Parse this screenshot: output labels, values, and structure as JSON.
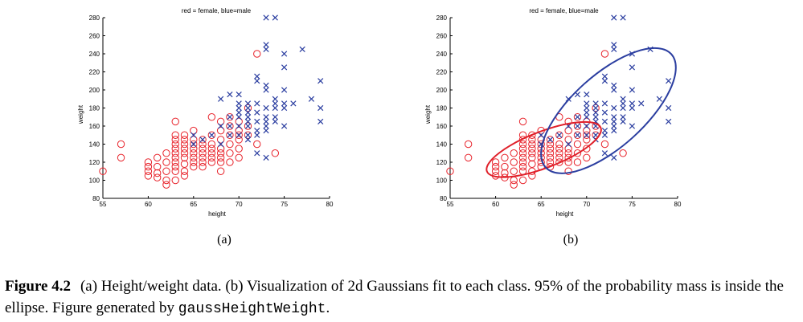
{
  "caption": {
    "figure_number": "Figure 4.2",
    "text_before_code": "(a) Height/weight data. (b) Visualization of 2d Gaussians fit to each class. 95% of the probability mass is inside the ellipse. Figure generated by ",
    "code": "gaussHeightWeight",
    "text_after_code": "."
  },
  "colors": {
    "female": "#e8232b",
    "male": "#2b3ea0"
  },
  "chart_data": [
    {
      "type": "scatter",
      "panel_label": "(a)",
      "title": "red = female, blue=male",
      "xlabel": "height",
      "ylabel": "weight",
      "xlim": [
        55,
        80
      ],
      "ylim": [
        80,
        280
      ],
      "xticks": [
        "55",
        "60",
        "65",
        "70",
        "75",
        "80"
      ],
      "yticks": [
        "80",
        "100",
        "120",
        "140",
        "160",
        "180",
        "200",
        "220",
        "240",
        "260",
        "280"
      ],
      "series": [
        {
          "name": "female",
          "marker": "o",
          "points": [
            [
              55,
              110
            ],
            [
              57,
              140
            ],
            [
              57,
              125
            ],
            [
              60,
              120
            ],
            [
              60,
              115
            ],
            [
              60,
              110
            ],
            [
              60,
              105
            ],
            [
              61,
              125
            ],
            [
              61,
              115
            ],
            [
              61,
              108
            ],
            [
              61,
              103
            ],
            [
              62,
              95
            ],
            [
              62,
              100
            ],
            [
              62,
              110
            ],
            [
              62,
              120
            ],
            [
              62,
              130
            ],
            [
              63,
              100
            ],
            [
              63,
              110
            ],
            [
              63,
              115
            ],
            [
              63,
              120
            ],
            [
              63,
              125
            ],
            [
              63,
              130
            ],
            [
              63,
              135
            ],
            [
              63,
              140
            ],
            [
              63,
              145
            ],
            [
              63,
              150
            ],
            [
              63,
              165
            ],
            [
              64,
              105
            ],
            [
              64,
              110
            ],
            [
              64,
              118
            ],
            [
              64,
              125
            ],
            [
              64,
              130
            ],
            [
              64,
              135
            ],
            [
              64,
              140
            ],
            [
              64,
              145
            ],
            [
              64,
              150
            ],
            [
              65,
              115
            ],
            [
              65,
              120
            ],
            [
              65,
              125
            ],
            [
              65,
              130
            ],
            [
              65,
              135
            ],
            [
              65,
              140
            ],
            [
              65,
              145
            ],
            [
              65,
              155
            ],
            [
              66,
              115
            ],
            [
              66,
              120
            ],
            [
              66,
              125
            ],
            [
              66,
              130
            ],
            [
              66,
              135
            ],
            [
              66,
              140
            ],
            [
              66,
              145
            ],
            [
              67,
              120
            ],
            [
              67,
              125
            ],
            [
              67,
              130
            ],
            [
              67,
              135
            ],
            [
              67,
              140
            ],
            [
              67,
              150
            ],
            [
              67,
              170
            ],
            [
              68,
              110
            ],
            [
              68,
              120
            ],
            [
              68,
              125
            ],
            [
              68,
              130
            ],
            [
              68,
              135
            ],
            [
              68,
              145
            ],
            [
              68,
              155
            ],
            [
              68,
              165
            ],
            [
              69,
              120
            ],
            [
              69,
              130
            ],
            [
              69,
              140
            ],
            [
              69,
              150
            ],
            [
              69,
              160
            ],
            [
              69,
              170
            ],
            [
              70,
              125
            ],
            [
              70,
              135
            ],
            [
              70,
              145
            ],
            [
              70,
              150
            ],
            [
              70,
              155
            ],
            [
              70,
              165
            ],
            [
              71,
              150
            ],
            [
              71,
              160
            ],
            [
              71,
              180
            ],
            [
              72,
              240
            ],
            [
              72,
              140
            ],
            [
              74,
              130
            ]
          ]
        },
        {
          "name": "male",
          "marker": "x",
          "points": [
            [
              65,
              140
            ],
            [
              65,
              150
            ],
            [
              66,
              145
            ],
            [
              67,
              150
            ],
            [
              68,
              140
            ],
            [
              68,
              160
            ],
            [
              68,
              190
            ],
            [
              69,
              150
            ],
            [
              69,
              160
            ],
            [
              69,
              170
            ],
            [
              69,
              195
            ],
            [
              70,
              150
            ],
            [
              70,
              160
            ],
            [
              70,
              170
            ],
            [
              70,
              175
            ],
            [
              70,
              180
            ],
            [
              70,
              185
            ],
            [
              70,
              195
            ],
            [
              71,
              145
            ],
            [
              71,
              150
            ],
            [
              71,
              160
            ],
            [
              71,
              165
            ],
            [
              71,
              170
            ],
            [
              71,
              175
            ],
            [
              71,
              180
            ],
            [
              71,
              185
            ],
            [
              72,
              130
            ],
            [
              72,
              150
            ],
            [
              72,
              155
            ],
            [
              72,
              165
            ],
            [
              72,
              175
            ],
            [
              72,
              185
            ],
            [
              72,
              210
            ],
            [
              72,
              215
            ],
            [
              73,
              125
            ],
            [
              73,
              155
            ],
            [
              73,
              160
            ],
            [
              73,
              165
            ],
            [
              73,
              170
            ],
            [
              73,
              180
            ],
            [
              73,
              200
            ],
            [
              73,
              205
            ],
            [
              73,
              245
            ],
            [
              73,
              250
            ],
            [
              73,
              280
            ],
            [
              74,
              165
            ],
            [
              74,
              170
            ],
            [
              74,
              180
            ],
            [
              74,
              185
            ],
            [
              74,
              190
            ],
            [
              74,
              280
            ],
            [
              75,
              160
            ],
            [
              75,
              180
            ],
            [
              75,
              185
            ],
            [
              75,
              200
            ],
            [
              75,
              225
            ],
            [
              75,
              240
            ],
            [
              76,
              185
            ],
            [
              77,
              245
            ],
            [
              78,
              190
            ],
            [
              79,
              165
            ],
            [
              79,
              180
            ],
            [
              79,
              210
            ]
          ]
        }
      ]
    },
    {
      "type": "scatter",
      "panel_label": "(b)",
      "title": "red = female, blue=male",
      "xlabel": "height",
      "ylabel": "weight",
      "xlim": [
        55,
        80
      ],
      "ylim": [
        80,
        280
      ],
      "xticks": [
        "55",
        "60",
        "65",
        "70",
        "75",
        "80"
      ],
      "yticks": [
        "80",
        "100",
        "120",
        "140",
        "160",
        "180",
        "200",
        "220",
        "240",
        "260",
        "280"
      ],
      "series": [
        {
          "name": "female",
          "marker": "o",
          "points": "same as (a)"
        },
        {
          "name": "male",
          "marker": "x",
          "points": "same as (a)"
        }
      ],
      "ellipses": [
        {
          "name": "female",
          "center": [
            65.3,
            134
          ],
          "rx": 6.7,
          "ry": 20,
          "angle_deg": -21
        },
        {
          "name": "male",
          "center": [
            72.4,
            177
          ],
          "rx": 9.3,
          "ry": 40,
          "angle_deg": -42
        }
      ]
    }
  ]
}
